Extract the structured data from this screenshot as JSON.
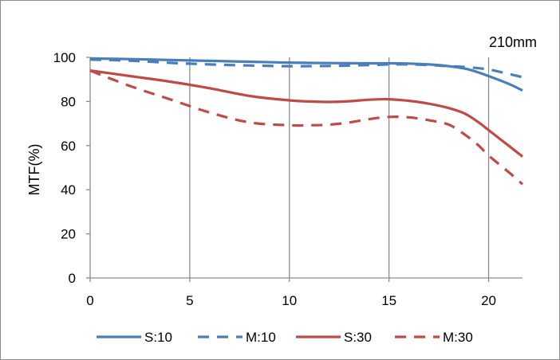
{
  "chart_data": {
    "type": "line",
    "title": "210mm",
    "xlabel": "",
    "ylabel": "MTF(%)",
    "xlim": [
      0,
      21.7
    ],
    "ylim": [
      0,
      100
    ],
    "xticks": [
      0,
      5,
      10,
      15,
      20
    ],
    "yticks": [
      0,
      20,
      40,
      60,
      80,
      100
    ],
    "grid": "vertical",
    "legend_position": "bottom",
    "series": [
      {
        "name": "S:10",
        "color": "#4a7ebb",
        "dash": "solid",
        "x": [
          0,
          2,
          4,
          6,
          8,
          10,
          12,
          14,
          15,
          16,
          17,
          18,
          19,
          20,
          21,
          21.7
        ],
        "y": [
          99.5,
          99.2,
          98.8,
          98.4,
          98,
          97.6,
          97.4,
          97.3,
          97.3,
          97.2,
          96.8,
          96,
          94.5,
          91.5,
          88,
          85
        ]
      },
      {
        "name": "M:10",
        "color": "#4a7ebb",
        "dash": "dashed",
        "x": [
          0,
          2,
          4,
          6,
          8,
          10,
          12,
          14,
          15,
          16,
          17,
          18,
          19,
          20,
          21,
          21.7
        ],
        "y": [
          99,
          98.5,
          97.5,
          96.8,
          96.3,
          96,
          96.1,
          96.5,
          96.8,
          96.8,
          96.5,
          96,
          95.5,
          94.5,
          92.5,
          91
        ]
      },
      {
        "name": "S:30",
        "color": "#be4b48",
        "dash": "solid",
        "x": [
          0,
          2,
          4,
          6,
          8,
          10,
          11,
          12,
          13,
          14,
          15,
          16,
          17,
          18,
          18.8,
          19.5,
          20,
          21,
          21.7
        ],
        "y": [
          94,
          91.5,
          89,
          86,
          82.5,
          80.5,
          80,
          79.8,
          80.1,
          80.8,
          81,
          80.3,
          79,
          77,
          74.5,
          70.5,
          67,
          60,
          55
        ]
      },
      {
        "name": "M:30",
        "color": "#be4b48",
        "dash": "dashed",
        "x": [
          0,
          2,
          4,
          6,
          8,
          10,
          11,
          12,
          13,
          14,
          15,
          16,
          17,
          18,
          18.8,
          19.5,
          20,
          21,
          21.7
        ],
        "y": [
          94,
          87,
          81,
          75,
          70.5,
          69.2,
          69.2,
          69.5,
          70.5,
          72,
          73,
          72.8,
          71.5,
          69.5,
          65,
          60,
          55.5,
          48,
          42.5
        ]
      }
    ]
  }
}
